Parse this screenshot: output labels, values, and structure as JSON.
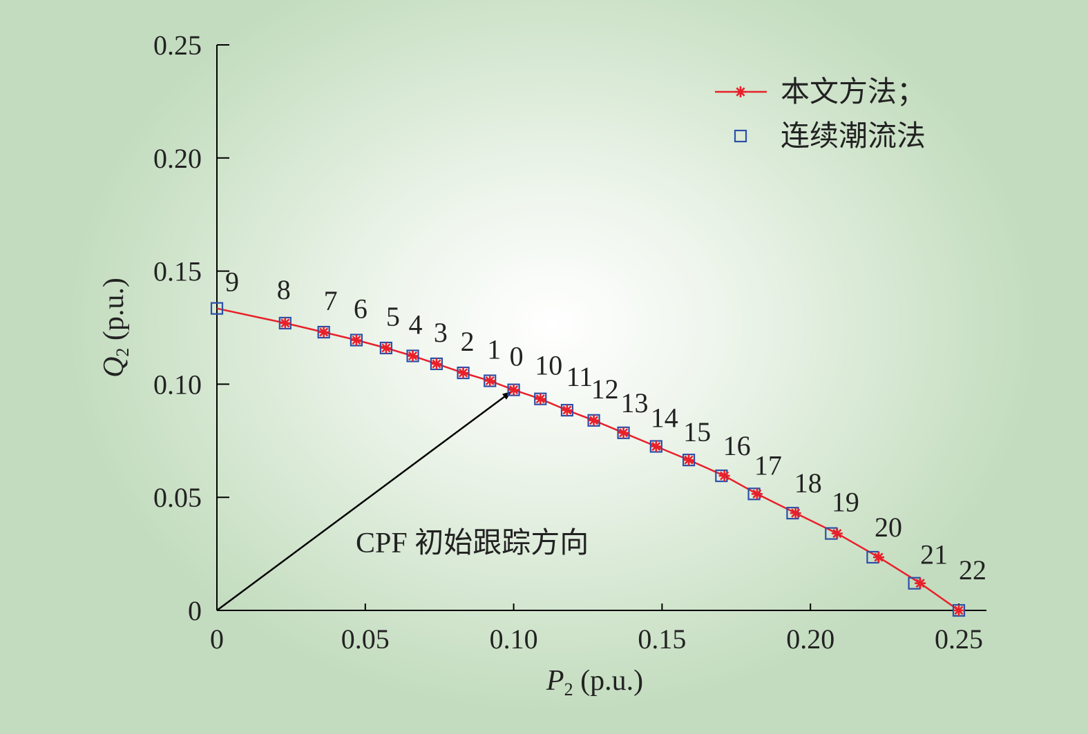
{
  "chart_data": {
    "type": "line",
    "xlabel": {
      "var": "P",
      "sub": "2",
      "unit": " (p.u.)"
    },
    "ylabel": {
      "var": "Q",
      "sub": "2",
      "unit": " (p.u.)"
    },
    "xlim": [
      0,
      0.25
    ],
    "ylim": [
      0,
      0.25
    ],
    "xticks": [
      0,
      0.05,
      0.1,
      0.15,
      0.2,
      0.25
    ],
    "xtick_labels": [
      "0",
      "0.05",
      "0.10",
      "0.15",
      "0.20",
      "0.25"
    ],
    "yticks": [
      0,
      0.05,
      0.1,
      0.15,
      0.2,
      0.25
    ],
    "ytick_labels": [
      "0",
      "0.05",
      "0.10",
      "0.15",
      "0.20",
      "0.25"
    ],
    "legend_position": "top-right",
    "series": [
      {
        "name": "本文方法；",
        "style": "line-star",
        "color": "#e8202a",
        "x": [
          0.023,
          0.036,
          0.047,
          0.057,
          0.066,
          0.074,
          0.083,
          0.092,
          0.1,
          0.109,
          0.118,
          0.127,
          0.137,
          0.148,
          0.159,
          0.171,
          0.182,
          0.195,
          0.209,
          0.223,
          0.237,
          0.25
        ],
        "y": [
          0.127,
          0.123,
          0.1195,
          0.116,
          0.1125,
          0.109,
          0.105,
          0.1015,
          0.0975,
          0.0935,
          0.0885,
          0.084,
          0.0785,
          0.0725,
          0.0665,
          0.0595,
          0.0515,
          0.043,
          0.034,
          0.0235,
          0.012,
          0.0
        ]
      },
      {
        "name": "连续潮流法",
        "style": "square",
        "color": "#2b4fa8",
        "x": [
          0.0,
          0.023,
          0.036,
          0.047,
          0.057,
          0.066,
          0.074,
          0.083,
          0.092,
          0.1,
          0.109,
          0.118,
          0.127,
          0.137,
          0.148,
          0.159,
          0.17,
          0.181,
          0.194,
          0.207,
          0.221,
          0.235,
          0.25
        ],
        "y": [
          0.1335,
          0.127,
          0.123,
          0.1195,
          0.116,
          0.1125,
          0.109,
          0.105,
          0.1015,
          0.0975,
          0.0935,
          0.0885,
          0.084,
          0.0785,
          0.0725,
          0.0665,
          0.0595,
          0.0515,
          0.043,
          0.034,
          0.0235,
          0.012,
          0.0
        ]
      }
    ],
    "point_labels": [
      {
        "text": "9",
        "x": 0.0,
        "y": 0.1335
      },
      {
        "text": "8",
        "x": 0.023,
        "y": 0.127
      },
      {
        "text": "7",
        "x": 0.036,
        "y": 0.123
      },
      {
        "text": "6",
        "x": 0.047,
        "y": 0.1195
      },
      {
        "text": "5",
        "x": 0.057,
        "y": 0.116
      },
      {
        "text": "4",
        "x": 0.066,
        "y": 0.1125
      },
      {
        "text": "3",
        "x": 0.074,
        "y": 0.109
      },
      {
        "text": "2",
        "x": 0.083,
        "y": 0.105
      },
      {
        "text": "1",
        "x": 0.092,
        "y": 0.1015
      },
      {
        "text": "0",
        "x": 0.1,
        "y": 0.0975
      },
      {
        "text": "10",
        "x": 0.109,
        "y": 0.0935
      },
      {
        "text": "11",
        "x": 0.118,
        "y": 0.0885
      },
      {
        "text": "12",
        "x": 0.127,
        "y": 0.084
      },
      {
        "text": "13",
        "x": 0.137,
        "y": 0.0785
      },
      {
        "text": "14",
        "x": 0.148,
        "y": 0.0725
      },
      {
        "text": "15",
        "x": 0.159,
        "y": 0.0665
      },
      {
        "text": "16",
        "x": 0.171,
        "y": 0.0595
      },
      {
        "text": "17",
        "x": 0.182,
        "y": 0.0515
      },
      {
        "text": "18",
        "x": 0.195,
        "y": 0.043
      },
      {
        "text": "19",
        "x": 0.209,
        "y": 0.034
      },
      {
        "text": "20",
        "x": 0.223,
        "y": 0.0235
      },
      {
        "text": "21",
        "x": 0.237,
        "y": 0.012
      },
      {
        "text": "22",
        "x": 0.25,
        "y": 0.0
      }
    ],
    "annotation": {
      "text": "CPF 初始跟踪方向",
      "arrow_from": [
        0.0,
        0.0
      ],
      "arrow_to": [
        0.1,
        0.0975
      ]
    }
  }
}
